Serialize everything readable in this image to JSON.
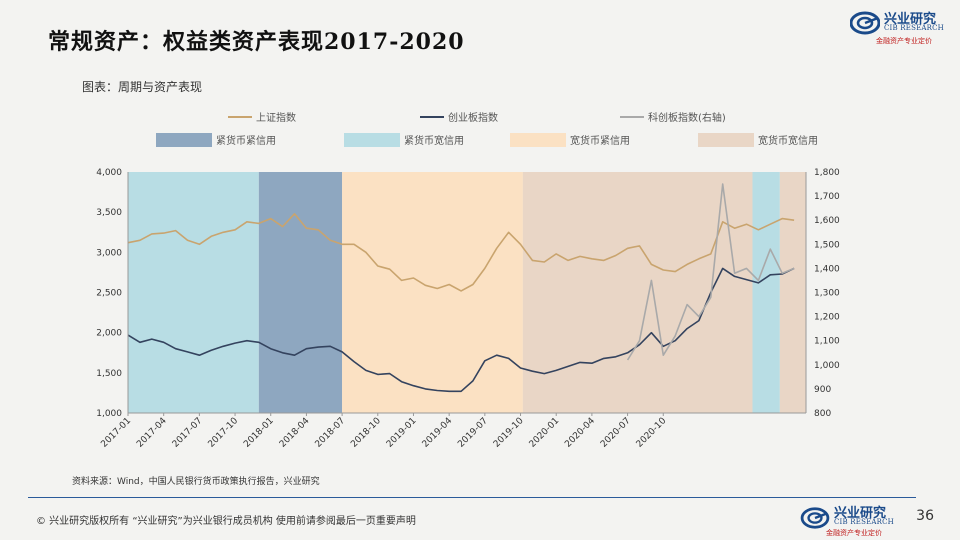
{
  "title": "常规资产：权益类资产表现2017-2020",
  "logo": {
    "cn": "兴业研究",
    "en": "CIB RESEARCH",
    "tag": "金融资产专业定价"
  },
  "caption": "图表：周期与资产表现",
  "source": "资料来源：Wind，中国人民银行货币政策执行报告，兴业研究",
  "footer": {
    "text": "©  兴业研究版权所有    “兴业研究”为兴业银行成员机构   使用前请参阅最后一页重要声明",
    "page": "36"
  },
  "colors": {
    "sse": "#c9a46e",
    "chinext": "#34435e",
    "star": "#a9a9a9",
    "tight_tight": "#8ea7c0",
    "tight_loose": "#b8dde4",
    "loose_tight": "#fbe1c3",
    "loose_loose": "#e9d6c6"
  },
  "chart_data": {
    "type": "line",
    "x_ticks": [
      "2017-01",
      "2017-04",
      "2017-07",
      "2017-10",
      "2018-01",
      "2018-04",
      "2018-07",
      "2018-10",
      "2019-01",
      "2019-04",
      "2019-07",
      "2019-10",
      "2020-01",
      "2020-04",
      "2020-07",
      "2020-10"
    ],
    "ylim_left": [
      1000,
      4000
    ],
    "yticks_left": [
      "1,000",
      "1,500",
      "2,000",
      "2,500",
      "3,000",
      "3,500",
      "4,000"
    ],
    "ylim_right": [
      800,
      1800
    ],
    "yticks_right": [
      "800",
      "900",
      "1,000",
      "1,100",
      "1,200",
      "1,300",
      "1,400",
      "1,500",
      "1,600",
      "1,700",
      "1,800"
    ],
    "legend_lines": [
      "上证指数",
      "创业板指数",
      "科创板指数(右轴)"
    ],
    "legend_regimes": [
      "紧货币紧信用",
      "紧货币宽信用",
      "宽货币紧信用",
      "宽货币宽信用"
    ],
    "regimes": [
      {
        "name": "紧货币宽信用",
        "color_key": "tight_loose",
        "start": 0,
        "end": 11
      },
      {
        "name": "紧货币紧信用",
        "color_key": "tight_tight",
        "start": 11,
        "end": 18
      },
      {
        "name": "宽货币紧信用",
        "color_key": "loose_tight",
        "start": 18,
        "end": 33.2
      },
      {
        "name": "宽货币宽信用",
        "color_key": "loose_loose",
        "start": 33.2,
        "end": 52.5
      },
      {
        "name": "紧货币宽信用",
        "color_key": "tight_loose",
        "start": 52.5,
        "end": 54.8
      },
      {
        "name": "宽货币宽信用",
        "color_key": "loose_loose",
        "start": 54.8,
        "end": 57
      }
    ],
    "series": [
      {
        "name": "上证指数",
        "axis": "left",
        "color_key": "sse",
        "points": [
          [
            0,
            3120
          ],
          [
            1,
            3150
          ],
          [
            2,
            3230
          ],
          [
            3,
            3240
          ],
          [
            4,
            3270
          ],
          [
            5,
            3150
          ],
          [
            6,
            3100
          ],
          [
            7,
            3200
          ],
          [
            8,
            3250
          ],
          [
            9,
            3280
          ],
          [
            10,
            3380
          ],
          [
            11,
            3360
          ],
          [
            12,
            3420
          ],
          [
            13,
            3320
          ],
          [
            14,
            3480
          ],
          [
            15,
            3300
          ],
          [
            16,
            3280
          ],
          [
            17,
            3150
          ],
          [
            18,
            3100
          ],
          [
            19,
            3100
          ],
          [
            20,
            3000
          ],
          [
            21,
            2830
          ],
          [
            22,
            2790
          ],
          [
            23,
            2650
          ],
          [
            24,
            2680
          ],
          [
            25,
            2590
          ],
          [
            26,
            2550
          ],
          [
            27,
            2600
          ],
          [
            28,
            2520
          ],
          [
            29,
            2600
          ],
          [
            30,
            2800
          ],
          [
            31,
            3050
          ],
          [
            32,
            3250
          ],
          [
            33,
            3100
          ],
          [
            34,
            2900
          ],
          [
            35,
            2880
          ],
          [
            36,
            2980
          ],
          [
            37,
            2900
          ],
          [
            38,
            2950
          ],
          [
            39,
            2920
          ],
          [
            40,
            2900
          ],
          [
            41,
            2960
          ],
          [
            42,
            3050
          ],
          [
            43,
            3080
          ],
          [
            44,
            2850
          ],
          [
            45,
            2780
          ],
          [
            46,
            2760
          ],
          [
            47,
            2850
          ],
          [
            48,
            2920
          ],
          [
            49,
            2980
          ],
          [
            50,
            3380
          ],
          [
            51,
            3300
          ],
          [
            52,
            3350
          ],
          [
            53,
            3280
          ],
          [
            54,
            3350
          ],
          [
            55,
            3420
          ],
          [
            56,
            3400
          ]
        ]
      },
      {
        "name": "创业板指数",
        "axis": "left",
        "color_key": "chinext",
        "points": [
          [
            0,
            1970
          ],
          [
            1,
            1880
          ],
          [
            2,
            1920
          ],
          [
            3,
            1880
          ],
          [
            4,
            1800
          ],
          [
            5,
            1760
          ],
          [
            6,
            1720
          ],
          [
            7,
            1780
          ],
          [
            8,
            1830
          ],
          [
            9,
            1870
          ],
          [
            10,
            1900
          ],
          [
            11,
            1880
          ],
          [
            12,
            1800
          ],
          [
            13,
            1750
          ],
          [
            14,
            1720
          ],
          [
            15,
            1800
          ],
          [
            16,
            1820
          ],
          [
            17,
            1830
          ],
          [
            18,
            1760
          ],
          [
            19,
            1640
          ],
          [
            20,
            1530
          ],
          [
            21,
            1480
          ],
          [
            22,
            1490
          ],
          [
            23,
            1390
          ],
          [
            24,
            1340
          ],
          [
            25,
            1300
          ],
          [
            26,
            1280
          ],
          [
            27,
            1270
          ],
          [
            28,
            1270
          ],
          [
            29,
            1400
          ],
          [
            30,
            1650
          ],
          [
            31,
            1720
          ],
          [
            32,
            1680
          ],
          [
            33,
            1560
          ],
          [
            34,
            1520
          ],
          [
            35,
            1490
          ],
          [
            36,
            1530
          ],
          [
            37,
            1580
          ],
          [
            38,
            1630
          ],
          [
            39,
            1620
          ],
          [
            40,
            1680
          ],
          [
            41,
            1700
          ],
          [
            42,
            1750
          ],
          [
            43,
            1850
          ],
          [
            44,
            2000
          ],
          [
            45,
            1830
          ],
          [
            46,
            1900
          ],
          [
            47,
            2050
          ],
          [
            48,
            2150
          ],
          [
            49,
            2500
          ],
          [
            50,
            2800
          ],
          [
            51,
            2700
          ],
          [
            52,
            2660
          ],
          [
            53,
            2620
          ],
          [
            54,
            2720
          ],
          [
            55,
            2730
          ],
          [
            56,
            2800
          ]
        ]
      },
      {
        "name": "科创板指数(右轴)",
        "axis": "right",
        "color_key": "star",
        "points": [
          [
            42,
            1020
          ],
          [
            43,
            1100
          ],
          [
            44,
            1350
          ],
          [
            45,
            1040
          ],
          [
            46,
            1120
          ],
          [
            47,
            1250
          ],
          [
            48,
            1200
          ],
          [
            49,
            1280
          ],
          [
            50,
            1750
          ],
          [
            51,
            1380
          ],
          [
            52,
            1400
          ],
          [
            53,
            1350
          ],
          [
            54,
            1480
          ],
          [
            55,
            1380
          ],
          [
            56,
            1400
          ]
        ]
      }
    ]
  }
}
